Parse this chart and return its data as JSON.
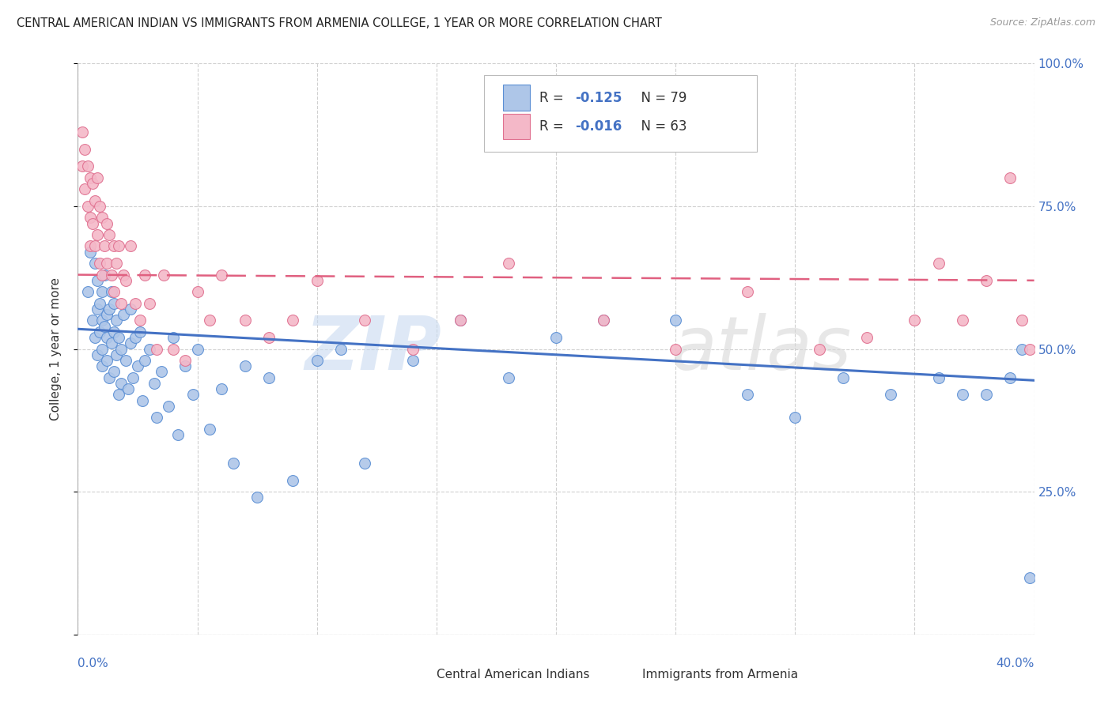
{
  "title": "CENTRAL AMERICAN INDIAN VS IMMIGRANTS FROM ARMENIA COLLEGE, 1 YEAR OR MORE CORRELATION CHART",
  "source": "Source: ZipAtlas.com",
  "ylabel": "College, 1 year or more",
  "legend_blue_label": "Central American Indians",
  "legend_pink_label": "Immigrants from Armenia",
  "blue_scatter_color": "#aec6e8",
  "blue_edge_color": "#5b8fd4",
  "pink_scatter_color": "#f4b8c8",
  "pink_edge_color": "#e07090",
  "blue_line_color": "#4472c4",
  "pink_line_color": "#e06080",
  "watermark": "ZIPatlas",
  "watermark_color": "#dce8f5",
  "blue_n": 79,
  "pink_n": 63,
  "blue_r": -0.125,
  "pink_r": -0.016,
  "xlim": [
    0.0,
    0.4
  ],
  "ylim": [
    0.0,
    1.0
  ],
  "ytick_vals": [
    0.0,
    0.25,
    0.5,
    0.75,
    1.0
  ],
  "ytick_labels": [
    "",
    "25.0%",
    "50.0%",
    "75.0%",
    "100.0%"
  ],
  "right_ytick_labels": [
    "",
    "25.0%",
    "50.0%",
    "75.0%",
    "100.0%"
  ],
  "xtick_vals": [
    0.0,
    0.05,
    0.1,
    0.15,
    0.2,
    0.25,
    0.3,
    0.35,
    0.4
  ],
  "blue_line_y_at_0": 0.535,
  "blue_line_y_at_04": 0.445,
  "pink_line_y_at_0": 0.63,
  "pink_line_y_at_04": 0.62,
  "title_fontsize": 10.5,
  "source_fontsize": 9,
  "tick_color": "#4472c4",
  "grid_color": "#d0d0d0",
  "bg_color": "#ffffff",
  "blue_scatter_x": [
    0.004,
    0.005,
    0.006,
    0.007,
    0.007,
    0.008,
    0.008,
    0.008,
    0.009,
    0.009,
    0.01,
    0.01,
    0.01,
    0.01,
    0.011,
    0.011,
    0.012,
    0.012,
    0.012,
    0.013,
    0.013,
    0.014,
    0.014,
    0.015,
    0.015,
    0.015,
    0.016,
    0.016,
    0.017,
    0.017,
    0.018,
    0.018,
    0.019,
    0.02,
    0.021,
    0.022,
    0.022,
    0.023,
    0.024,
    0.025,
    0.026,
    0.027,
    0.028,
    0.03,
    0.032,
    0.033,
    0.035,
    0.038,
    0.04,
    0.042,
    0.045,
    0.048,
    0.05,
    0.055,
    0.06,
    0.065,
    0.07,
    0.075,
    0.08,
    0.09,
    0.1,
    0.11,
    0.12,
    0.14,
    0.16,
    0.18,
    0.2,
    0.22,
    0.25,
    0.28,
    0.3,
    0.32,
    0.34,
    0.36,
    0.37,
    0.38,
    0.39,
    0.395,
    0.398
  ],
  "blue_scatter_y": [
    0.6,
    0.67,
    0.55,
    0.52,
    0.65,
    0.57,
    0.62,
    0.49,
    0.53,
    0.58,
    0.47,
    0.55,
    0.6,
    0.5,
    0.54,
    0.63,
    0.48,
    0.56,
    0.52,
    0.45,
    0.57,
    0.51,
    0.6,
    0.46,
    0.53,
    0.58,
    0.49,
    0.55,
    0.42,
    0.52,
    0.44,
    0.5,
    0.56,
    0.48,
    0.43,
    0.51,
    0.57,
    0.45,
    0.52,
    0.47,
    0.53,
    0.41,
    0.48,
    0.5,
    0.44,
    0.38,
    0.46,
    0.4,
    0.52,
    0.35,
    0.47,
    0.42,
    0.5,
    0.36,
    0.43,
    0.3,
    0.47,
    0.24,
    0.45,
    0.27,
    0.48,
    0.5,
    0.3,
    0.48,
    0.55,
    0.45,
    0.52,
    0.55,
    0.55,
    0.42,
    0.38,
    0.45,
    0.42,
    0.45,
    0.42,
    0.42,
    0.45,
    0.5,
    0.1
  ],
  "pink_scatter_x": [
    0.002,
    0.002,
    0.003,
    0.003,
    0.004,
    0.004,
    0.005,
    0.005,
    0.005,
    0.006,
    0.006,
    0.007,
    0.007,
    0.008,
    0.008,
    0.009,
    0.009,
    0.01,
    0.01,
    0.011,
    0.012,
    0.012,
    0.013,
    0.014,
    0.015,
    0.015,
    0.016,
    0.017,
    0.018,
    0.019,
    0.02,
    0.022,
    0.024,
    0.026,
    0.028,
    0.03,
    0.033,
    0.036,
    0.04,
    0.045,
    0.05,
    0.055,
    0.06,
    0.07,
    0.08,
    0.09,
    0.1,
    0.12,
    0.14,
    0.16,
    0.18,
    0.22,
    0.25,
    0.28,
    0.31,
    0.33,
    0.35,
    0.36,
    0.37,
    0.38,
    0.39,
    0.395,
    0.398
  ],
  "pink_scatter_y": [
    0.88,
    0.82,
    0.85,
    0.78,
    0.82,
    0.75,
    0.8,
    0.73,
    0.68,
    0.79,
    0.72,
    0.76,
    0.68,
    0.8,
    0.7,
    0.75,
    0.65,
    0.73,
    0.63,
    0.68,
    0.72,
    0.65,
    0.7,
    0.63,
    0.68,
    0.6,
    0.65,
    0.68,
    0.58,
    0.63,
    0.62,
    0.68,
    0.58,
    0.55,
    0.63,
    0.58,
    0.5,
    0.63,
    0.5,
    0.48,
    0.6,
    0.55,
    0.63,
    0.55,
    0.52,
    0.55,
    0.62,
    0.55,
    0.5,
    0.55,
    0.65,
    0.55,
    0.5,
    0.6,
    0.5,
    0.52,
    0.55,
    0.65,
    0.55,
    0.62,
    0.8,
    0.55,
    0.5
  ]
}
